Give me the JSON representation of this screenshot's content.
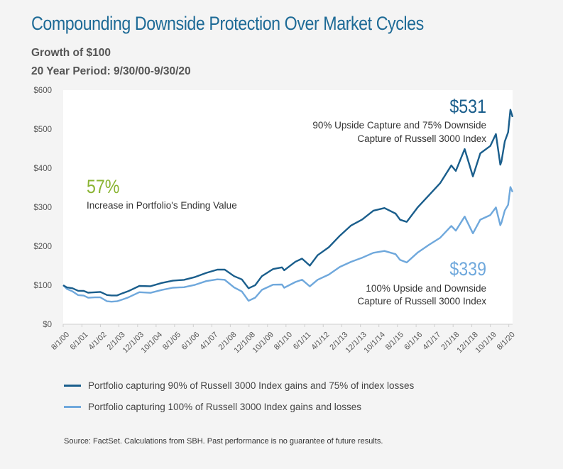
{
  "header": {
    "title": "Compounding Downside Protection Over Market Cycles",
    "subtitle_1": "Growth of $100",
    "subtitle_2": "20 Year Period: 9/30/00-9/30/20"
  },
  "colors": {
    "dark_blue": "#1a5e8c",
    "light_blue": "#6fa8dc",
    "green": "#8ab433",
    "title_blue": "#1d6a96",
    "plot_bg": "#ffffff",
    "axis_text": "#555555"
  },
  "chart_data": {
    "type": "line",
    "title": "Compounding Downside Protection Over Market Cycles",
    "xlabel": "",
    "ylabel": "",
    "ylim": [
      0,
      600
    ],
    "y_ticks": [
      0,
      100,
      200,
      300,
      400,
      500,
      600
    ],
    "y_tick_labels": [
      "$0",
      "$100",
      "$200",
      "$300",
      "$400",
      "$500",
      "$600"
    ],
    "x_range": [
      2000.58,
      2020.75
    ],
    "x_ticks": [
      2000.58,
      2001.42,
      2002.25,
      2003.08,
      2003.92,
      2004.75,
      2005.58,
      2006.42,
      2007.25,
      2008.08,
      2008.92,
      2009.75,
      2010.58,
      2011.42,
      2012.25,
      2013.08,
      2013.92,
      2014.75,
      2015.58,
      2016.42,
      2017.25,
      2018.08,
      2018.92,
      2019.75,
      2020.58
    ],
    "x_tick_labels": [
      "8/1/00",
      "6/1/01",
      "4/1/02",
      "2/1/03",
      "12/1/03",
      "10/1/04",
      "8/1/05",
      "6/1/06",
      "4/1/07",
      "2/1/08",
      "12/1/08",
      "10/1/09",
      "8/1/10",
      "6/1/11",
      "4/1/12",
      "2/1/13",
      "12/1/13",
      "10/1/14",
      "8/1/15",
      "6/1/16",
      "4/1/17",
      "2/1/18",
      "12/1/18",
      "10/1/19",
      "8/1/20"
    ],
    "grid": false,
    "series": [
      {
        "name": "Portfolio capturing 90% of Russell 3000 Index gains and 75% of index losses",
        "color": "#1a5e8c",
        "x": [
          2000.58,
          2000.75,
          2001.0,
          2001.25,
          2001.5,
          2001.7,
          2002.0,
          2002.25,
          2002.55,
          2002.75,
          2003.0,
          2003.25,
          2003.5,
          2004.0,
          2004.5,
          2005.0,
          2005.5,
          2006.0,
          2006.5,
          2007.0,
          2007.5,
          2007.83,
          2008.25,
          2008.6,
          2008.9,
          2009.2,
          2009.5,
          2010.0,
          2010.4,
          2010.5,
          2011.0,
          2011.3,
          2011.65,
          2012.0,
          2012.5,
          2013.0,
          2013.5,
          2014.0,
          2014.5,
          2015.0,
          2015.5,
          2015.7,
          2016.0,
          2016.5,
          2017.0,
          2017.5,
          2018.0,
          2018.2,
          2018.6,
          2018.97,
          2019.3,
          2019.75,
          2020.0,
          2020.2,
          2020.25,
          2020.4,
          2020.55,
          2020.65,
          2020.75
        ],
        "values": [
          100,
          96,
          90,
          87,
          86,
          79,
          84,
          82,
          74,
          76,
          72,
          80,
          86,
          96,
          99,
          106,
          110,
          116,
          120,
          131,
          142,
          138,
          124,
          116,
          90,
          102,
          123,
          140,
          148,
          137,
          160,
          170,
          148,
          178,
          198,
          225,
          255,
          268,
          290,
          300,
          282,
          268,
          264,
          298,
          332,
          362,
          405,
          395,
          448,
          378,
          440,
          455,
          488,
          410,
          415,
          470,
          492,
          548,
          531
        ]
      },
      {
        "name": "Portfolio capturing 100% of Russell 3000 Index gains and losses",
        "color": "#6fa8dc",
        "x": [
          2000.58,
          2000.75,
          2001.0,
          2001.25,
          2001.5,
          2001.7,
          2002.0,
          2002.25,
          2002.55,
          2002.75,
          2003.0,
          2003.25,
          2003.5,
          2004.0,
          2004.5,
          2005.0,
          2005.5,
          2006.0,
          2006.5,
          2007.0,
          2007.5,
          2007.83,
          2008.25,
          2008.6,
          2008.9,
          2009.2,
          2009.5,
          2010.0,
          2010.4,
          2010.5,
          2011.0,
          2011.3,
          2011.65,
          2012.0,
          2012.5,
          2013.0,
          2013.5,
          2014.0,
          2014.5,
          2015.0,
          2015.5,
          2015.7,
          2016.0,
          2016.5,
          2017.0,
          2017.5,
          2018.0,
          2018.2,
          2018.6,
          2018.97,
          2019.3,
          2019.75,
          2020.0,
          2020.2,
          2020.25,
          2020.4,
          2020.55,
          2020.65,
          2020.75
        ],
        "values": [
          100,
          92,
          82,
          76,
          74,
          66,
          71,
          68,
          58,
          60,
          57,
          64,
          70,
          80,
          82,
          88,
          92,
          97,
          100,
          110,
          117,
          112,
          95,
          85,
          58,
          70,
          88,
          100,
          104,
          92,
          108,
          116,
          95,
          115,
          128,
          145,
          162,
          170,
          182,
          190,
          178,
          165,
          160,
          182,
          205,
          222,
          250,
          242,
          275,
          232,
          270,
          278,
          300,
          255,
          258,
          293,
          306,
          350,
          339
        ]
      }
    ],
    "annotations": [
      {
        "value_text": "$531",
        "line1": "90% Upside Capture and 75% Downside",
        "line2": "Capture of Russell 3000 Index"
      },
      {
        "value_text": "$339",
        "line1": "100% Upside and Downside",
        "line2": "Capture of Russell 3000 Index"
      },
      {
        "value_text": "57%",
        "line1": "Increase in Portfolio's Ending Value"
      }
    ]
  },
  "legend": {
    "item_1": "Portfolio capturing 90% of Russell 3000 Index gains and 75% of index losses",
    "item_2": "Portfolio capturing 100% of Russell 3000 Index gains and losses"
  },
  "footer": {
    "source": "Source: FactSet. Calculations from SBH. Past performance is no guarantee of future results."
  }
}
